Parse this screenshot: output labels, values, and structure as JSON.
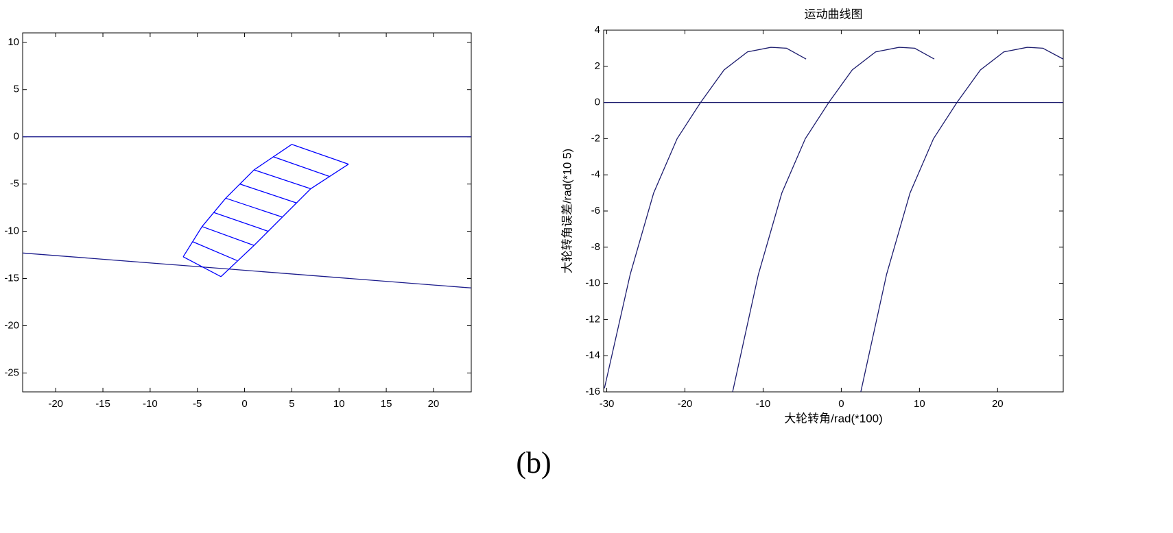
{
  "chart_data": [
    {
      "type": "line",
      "xlim": [
        -23.5,
        24
      ],
      "ylim": [
        -27,
        11
      ],
      "xticks": [
        -20,
        -15,
        -10,
        -5,
        0,
        5,
        10,
        15,
        20
      ],
      "yticks": [
        10,
        5,
        0,
        -5,
        -10,
        -15,
        -20,
        -25
      ],
      "series": [
        {
          "color": "#1c1c8c",
          "x": [
            -23.5,
            24
          ],
          "y": [
            0,
            0
          ]
        },
        {
          "color": "#1c1c8c",
          "x": [
            -23.5,
            24
          ],
          "y": [
            -12.3,
            -16
          ]
        },
        {
          "color": "#0000ff",
          "x": [
            5,
            1,
            -2,
            -4.5,
            -6.5
          ],
          "y": [
            -0.8,
            -3.5,
            -6.5,
            -9.5,
            -12.7
          ]
        },
        {
          "color": "#0000ff",
          "x": [
            11,
            7,
            4,
            1,
            -2.5
          ],
          "y": [
            -2.9,
            -5.5,
            -8.5,
            -11.5,
            -14.8
          ]
        },
        {
          "color": "#0000ff",
          "x": [
            5,
            11
          ],
          "y": [
            -0.8,
            -2.9
          ]
        },
        {
          "color": "#0000ff",
          "x": [
            3,
            9
          ],
          "y": [
            -2.1,
            -4.2
          ]
        },
        {
          "color": "#0000ff",
          "x": [
            1,
            7
          ],
          "y": [
            -3.5,
            -5.5
          ]
        },
        {
          "color": "#0000ff",
          "x": [
            -0.5,
            5.5
          ],
          "y": [
            -5,
            -7
          ]
        },
        {
          "color": "#0000ff",
          "x": [
            -2,
            4
          ],
          "y": [
            -6.5,
            -8.5
          ]
        },
        {
          "color": "#0000ff",
          "x": [
            -3.3,
            2.5
          ],
          "y": [
            -8,
            -10
          ]
        },
        {
          "color": "#0000ff",
          "x": [
            -4.5,
            1
          ],
          "y": [
            -9.5,
            -11.5
          ]
        },
        {
          "color": "#0000ff",
          "x": [
            -5.5,
            -0.8
          ],
          "y": [
            -11.1,
            -13.1
          ]
        },
        {
          "color": "#0000ff",
          "x": [
            -6.5,
            -2.5
          ],
          "y": [
            -12.7,
            -14.8
          ]
        }
      ]
    },
    {
      "type": "line",
      "title": "运动曲线图",
      "x_label": "大轮转角/rad(*100)",
      "y_label": "大轮转角误差/rad(*10 5)",
      "xlim": [
        -30.4,
        28.4
      ],
      "ylim": [
        -16,
        4
      ],
      "xticks": [
        -30,
        -20,
        -10,
        0,
        10,
        20
      ],
      "yticks": [
        4,
        2,
        0,
        -2,
        -4,
        -6,
        -8,
        -10,
        -12,
        -14,
        -16
      ],
      "series": [
        {
          "color": "#1c1c6e",
          "x": [
            -30.4,
            28.4
          ],
          "y": [
            0,
            0
          ]
        },
        {
          "color": "#1c1c6e",
          "x": [
            -30.3,
            -27,
            -24,
            -21,
            -18,
            -15,
            -12,
            -9,
            -7,
            -4.5
          ],
          "y": [
            -15.8,
            -9.5,
            -5,
            -2,
            0,
            1.8,
            2.8,
            3.05,
            3,
            2.4
          ]
        },
        {
          "color": "#1c1c6e",
          "x": [
            -13.9,
            -10.6,
            -7.6,
            -4.6,
            -1.6,
            1.4,
            4.4,
            7.4,
            9.4,
            11.9
          ],
          "y": [
            -16,
            -9.5,
            -5,
            -2,
            0,
            1.8,
            2.8,
            3.05,
            3,
            2.4
          ]
        },
        {
          "color": "#1c1c6e",
          "x": [
            2.5,
            5.8,
            8.8,
            11.8,
            14.8,
            17.8,
            20.8,
            23.8,
            25.8,
            28.4
          ],
          "y": [
            -16,
            -9.5,
            -5,
            -2,
            0,
            1.8,
            2.8,
            3.05,
            3,
            2.4
          ]
        }
      ]
    }
  ],
  "caption": "(b)"
}
